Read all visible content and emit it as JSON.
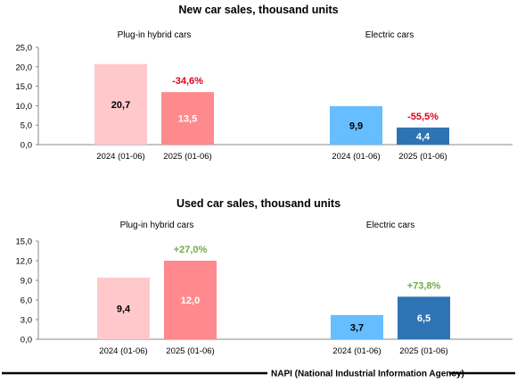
{
  "source": "NAPI (National Industrial Information Agency)",
  "chart_data": [
    {
      "type": "bar",
      "title": "New car sales, thousand units",
      "ylim": [
        0,
        25
      ],
      "yticks": [
        "0,0",
        "5,0",
        "10,0",
        "15,0",
        "20,0",
        "25,0"
      ],
      "grid": false,
      "groups": [
        {
          "name": "Plug-in hybrid cars",
          "categories": [
            "2024 (01-06)",
            "2025 (01-06)"
          ],
          "values": [
            20.7,
            13.5
          ],
          "value_labels": [
            "20,7",
            "13,5"
          ],
          "colors": [
            "#ffc9cb",
            "#ff8a8d"
          ],
          "change": "-34,6%",
          "change_color": "#e3001b"
        },
        {
          "name": "Electric cars",
          "categories": [
            "2024 (01-06)",
            "2025 (01-06)"
          ],
          "values": [
            9.9,
            4.4
          ],
          "value_labels": [
            "9,9",
            "4,4"
          ],
          "colors": [
            "#66bdff",
            "#2e74b5"
          ],
          "change": "-55,5%",
          "change_color": "#e3001b"
        }
      ]
    },
    {
      "type": "bar",
      "title": "Used car sales, thousand units",
      "ylim": [
        0,
        15
      ],
      "yticks": [
        "0,0",
        "3,0",
        "6,0",
        "9,0",
        "12,0",
        "15,0"
      ],
      "grid": false,
      "groups": [
        {
          "name": "Plug-in hybrid cars",
          "categories": [
            "2024 (01-06)",
            "2025 (01-06)"
          ],
          "values": [
            9.4,
            12.0
          ],
          "value_labels": [
            "9,4",
            "12,0"
          ],
          "colors": [
            "#ffc9cb",
            "#ff8a8d"
          ],
          "change": "+27,0%",
          "change_color": "#70ad47"
        },
        {
          "name": "Electric cars",
          "categories": [
            "2024 (01-06)",
            "2025 (01-06)"
          ],
          "values": [
            3.7,
            6.5
          ],
          "value_labels": [
            "3,7",
            "6,5"
          ],
          "colors": [
            "#66bdff",
            "#2e74b5"
          ],
          "change": "+73,8%",
          "change_color": "#70ad47"
        }
      ]
    }
  ]
}
